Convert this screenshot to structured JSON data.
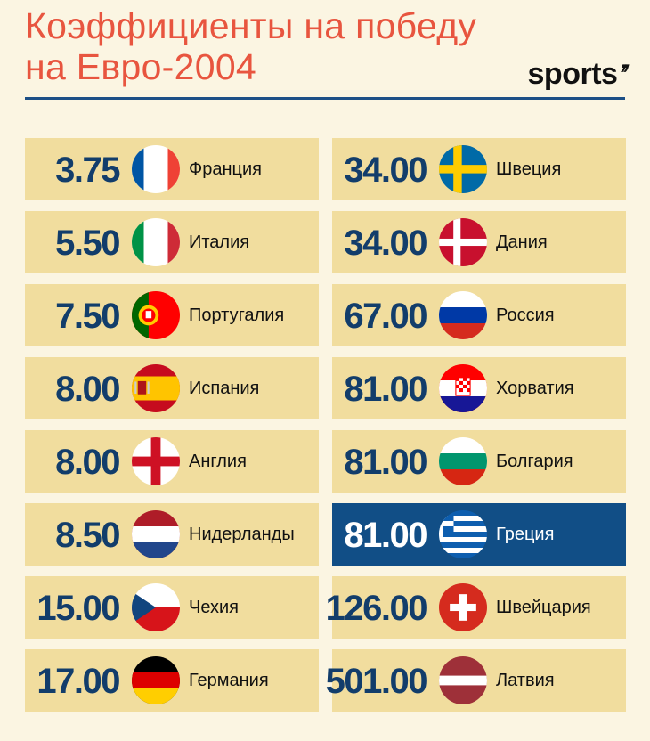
{
  "header": {
    "title_line1": "Коэффициенты на победу",
    "title_line2": "на Евро-2004",
    "brand": "sports",
    "brand_mark": "’’"
  },
  "colors": {
    "background": "#fbf5e2",
    "title": "#e8553f",
    "card": "#f1dd9e",
    "card_highlight": "#114e86",
    "odds_text": "#123d6b",
    "rule": "#1c4f86"
  },
  "teams_left": [
    {
      "odds": "3.75",
      "country": "Франция",
      "flag": "france-flag-icon"
    },
    {
      "odds": "5.50",
      "country": "Италия",
      "flag": "italy-flag-icon"
    },
    {
      "odds": "7.50",
      "country": "Португалия",
      "flag": "portugal-flag-icon"
    },
    {
      "odds": "8.00",
      "country": "Испания",
      "flag": "spain-flag-icon"
    },
    {
      "odds": "8.00",
      "country": "Англия",
      "flag": "england-flag-icon"
    },
    {
      "odds": "8.50",
      "country": "Нидерланды",
      "flag": "netherlands-flag-icon"
    },
    {
      "odds": "15.00",
      "country": "Чехия",
      "flag": "czechia-flag-icon"
    },
    {
      "odds": "17.00",
      "country": "Германия",
      "flag": "germany-flag-icon"
    }
  ],
  "teams_right": [
    {
      "odds": "34.00",
      "country": "Швеция",
      "flag": "sweden-flag-icon"
    },
    {
      "odds": "34.00",
      "country": "Дания",
      "flag": "denmark-flag-icon"
    },
    {
      "odds": "67.00",
      "country": "Россия",
      "flag": "russia-flag-icon"
    },
    {
      "odds": "81.00",
      "country": "Хорватия",
      "flag": "croatia-flag-icon"
    },
    {
      "odds": "81.00",
      "country": "Болгария",
      "flag": "bulgaria-flag-icon"
    },
    {
      "odds": "81.00",
      "country": "Греция",
      "flag": "greece-flag-icon",
      "highlighted": true
    },
    {
      "odds": "126.00",
      "country": "Швейцария",
      "flag": "switzerland-flag-icon"
    },
    {
      "odds": "501.00",
      "country": "Латвия",
      "flag": "latvia-flag-icon"
    }
  ]
}
